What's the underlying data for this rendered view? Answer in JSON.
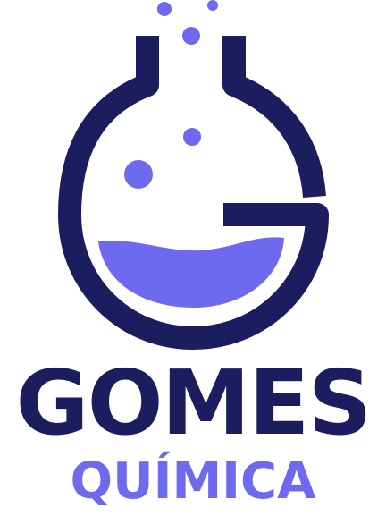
{
  "brand": {
    "name": "GOMES",
    "subtitle": "QUÍMICA"
  },
  "colors": {
    "primary": "#1c1d5e",
    "accent": "#6d6af0",
    "background": "#ffffff"
  },
  "icons": {
    "logo": "flask-g-icon"
  }
}
